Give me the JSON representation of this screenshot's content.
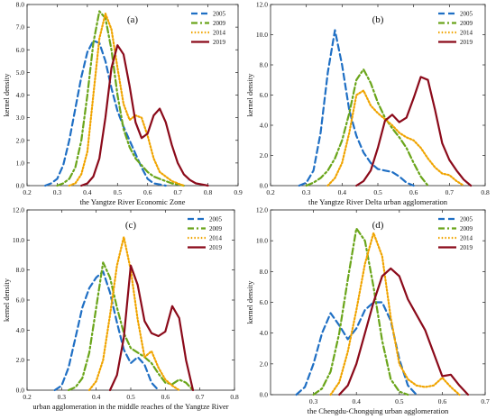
{
  "chart_data": [
    {
      "type": "line",
      "panel_tag": "(a)",
      "xlabel": "the Yangtze River Economic Zone",
      "ylabel": "kernel density",
      "xlim": [
        0.2,
        0.9
      ],
      "ylim": [
        0,
        8
      ],
      "xticks": [
        "0.2",
        "0.3",
        "0.4",
        "0.5",
        "0.6",
        "0.7",
        "0.8",
        "0.9"
      ],
      "yticks": [
        "0.0",
        "1.0",
        "2.0",
        "3.0",
        "4.0",
        "5.0",
        "6.0",
        "7.0",
        "8.0"
      ],
      "legend": "top-right",
      "grid": false,
      "series": [
        {
          "name": "2005",
          "color": "#1f6fc4",
          "style": "dashed",
          "x": [
            0.26,
            0.28,
            0.3,
            0.32,
            0.34,
            0.36,
            0.38,
            0.4,
            0.42,
            0.44,
            0.46,
            0.48,
            0.5,
            0.52,
            0.54,
            0.56,
            0.58,
            0.6,
            0.62,
            0.64,
            0.66
          ],
          "y": [
            0.0,
            0.1,
            0.3,
            0.9,
            2.0,
            3.4,
            4.8,
            5.9,
            6.4,
            6.3,
            5.5,
            4.3,
            3.3,
            2.6,
            2.0,
            1.4,
            0.8,
            0.3,
            0.1,
            0.05,
            0.0
          ]
        },
        {
          "name": "2009",
          "color": "#6aa51a",
          "style": "dashdot",
          "x": [
            0.3,
            0.32,
            0.34,
            0.36,
            0.38,
            0.4,
            0.42,
            0.44,
            0.46,
            0.48,
            0.5,
            0.52,
            0.54,
            0.56,
            0.58,
            0.6,
            0.62,
            0.64,
            0.66,
            0.68,
            0.7,
            0.72
          ],
          "y": [
            0.0,
            0.1,
            0.3,
            0.8,
            2.0,
            4.0,
            6.3,
            7.7,
            7.4,
            6.0,
            4.0,
            2.5,
            1.7,
            1.2,
            0.9,
            0.6,
            0.4,
            0.3,
            0.2,
            0.1,
            0.05,
            0.0
          ]
        },
        {
          "name": "2014",
          "color": "#f0a400",
          "style": "dotted",
          "x": [
            0.34,
            0.36,
            0.38,
            0.4,
            0.42,
            0.44,
            0.46,
            0.48,
            0.5,
            0.52,
            0.54,
            0.56,
            0.58,
            0.6,
            0.62,
            0.64,
            0.66,
            0.68,
            0.7,
            0.72
          ],
          "y": [
            0.0,
            0.1,
            0.5,
            1.5,
            4.0,
            6.5,
            7.6,
            6.9,
            5.2,
            3.6,
            2.9,
            3.1,
            3.0,
            2.2,
            1.2,
            0.6,
            0.4,
            0.2,
            0.1,
            0.0
          ]
        },
        {
          "name": "2019",
          "color": "#8b0a1a",
          "style": "solid",
          "x": [
            0.38,
            0.4,
            0.42,
            0.44,
            0.46,
            0.48,
            0.5,
            0.52,
            0.54,
            0.56,
            0.58,
            0.6,
            0.62,
            0.64,
            0.66,
            0.68,
            0.7,
            0.72,
            0.74,
            0.76,
            0.78,
            0.8
          ],
          "y": [
            0.0,
            0.1,
            0.4,
            1.2,
            3.0,
            5.2,
            6.2,
            5.8,
            4.4,
            2.8,
            2.1,
            2.3,
            3.1,
            3.4,
            2.8,
            1.8,
            1.0,
            0.5,
            0.25,
            0.1,
            0.05,
            0.0
          ]
        }
      ]
    },
    {
      "type": "line",
      "panel_tag": "(b)",
      "xlabel": "the Yangtze River Delta urban agglomeration",
      "ylabel": "kernel density",
      "xlim": [
        0.2,
        0.8
      ],
      "ylim": [
        0,
        12
      ],
      "xticks": [
        "0.2",
        "0.3",
        "0.4",
        "0.5",
        "0.6",
        "0.7",
        "0.8"
      ],
      "yticks": [
        "0.0",
        "2.0",
        "4.0",
        "6.0",
        "8.0",
        "10.0",
        "12.0"
      ],
      "legend": "top-right",
      "grid": false,
      "series": [
        {
          "name": "2005",
          "color": "#1f6fc4",
          "style": "dashed",
          "x": [
            0.28,
            0.3,
            0.32,
            0.34,
            0.36,
            0.38,
            0.4,
            0.42,
            0.44,
            0.46,
            0.48,
            0.5,
            0.52,
            0.54,
            0.56,
            0.58,
            0.6
          ],
          "y": [
            0.0,
            0.2,
            1.0,
            3.5,
            7.5,
            10.3,
            8.0,
            5.0,
            3.3,
            2.2,
            1.5,
            1.1,
            1.0,
            0.9,
            0.6,
            0.2,
            0.0
          ]
        },
        {
          "name": "2009",
          "color": "#6aa51a",
          "style": "dashdot",
          "x": [
            0.3,
            0.32,
            0.34,
            0.36,
            0.38,
            0.4,
            0.42,
            0.44,
            0.46,
            0.48,
            0.5,
            0.52,
            0.54,
            0.56,
            0.58,
            0.6,
            0.62,
            0.64
          ],
          "y": [
            0.0,
            0.2,
            0.5,
            1.0,
            1.8,
            3.0,
            4.8,
            7.0,
            7.7,
            6.8,
            5.5,
            4.5,
            3.8,
            3.2,
            2.5,
            1.5,
            0.6,
            0.0
          ]
        },
        {
          "name": "2014",
          "color": "#f0a400",
          "style": "dotted",
          "x": [
            0.36,
            0.38,
            0.4,
            0.42,
            0.44,
            0.46,
            0.48,
            0.5,
            0.52,
            0.54,
            0.56,
            0.58,
            0.6,
            0.62,
            0.64,
            0.66,
            0.68,
            0.7,
            0.72,
            0.74
          ],
          "y": [
            0.0,
            0.5,
            1.5,
            3.5,
            6.0,
            6.3,
            5.3,
            4.8,
            4.4,
            4.0,
            3.5,
            3.2,
            3.0,
            2.5,
            1.8,
            1.2,
            0.8,
            0.7,
            0.3,
            0.0
          ]
        },
        {
          "name": "2019",
          "color": "#8b0a1a",
          "style": "solid",
          "x": [
            0.44,
            0.46,
            0.48,
            0.5,
            0.52,
            0.54,
            0.56,
            0.58,
            0.6,
            0.62,
            0.64,
            0.66,
            0.68,
            0.7,
            0.72,
            0.74,
            0.76
          ],
          "y": [
            0.0,
            0.3,
            1.0,
            2.5,
            4.3,
            4.7,
            4.2,
            4.5,
            5.8,
            7.2,
            7.0,
            5.0,
            2.8,
            1.7,
            1.0,
            0.4,
            0.0
          ]
        }
      ]
    },
    {
      "type": "line",
      "panel_tag": "(c)",
      "xlabel": "urban agglomeration in the middle reaches of the Yangtze River",
      "ylabel": "kernel density",
      "xlim": [
        0.2,
        0.8
      ],
      "ylim": [
        0,
        12
      ],
      "xticks": [
        "0.2",
        "0.3",
        "0.4",
        "0.5",
        "0.6",
        "0.7",
        "0.8"
      ],
      "yticks": [
        "0.0",
        "2.0",
        "4.0",
        "6.0",
        "8.0",
        "10.0",
        "12.0"
      ],
      "legend": "top-right",
      "grid": false,
      "series": [
        {
          "name": "2005",
          "color": "#1f6fc4",
          "style": "dashed",
          "x": [
            0.28,
            0.3,
            0.32,
            0.34,
            0.36,
            0.38,
            0.4,
            0.42,
            0.44,
            0.46,
            0.48,
            0.5,
            0.52,
            0.54,
            0.56,
            0.58
          ],
          "y": [
            0.0,
            0.3,
            1.5,
            3.5,
            5.5,
            6.8,
            7.5,
            7.9,
            6.5,
            4.5,
            2.7,
            1.8,
            2.2,
            1.7,
            0.5,
            0.0
          ]
        },
        {
          "name": "2009",
          "color": "#6aa51a",
          "style": "dashdot",
          "x": [
            0.32,
            0.34,
            0.36,
            0.38,
            0.4,
            0.42,
            0.44,
            0.46,
            0.48,
            0.5,
            0.52,
            0.54,
            0.56,
            0.58,
            0.6,
            0.62,
            0.64,
            0.66,
            0.68
          ],
          "y": [
            0.0,
            0.2,
            0.8,
            2.5,
            5.5,
            8.5,
            7.5,
            5.5,
            3.8,
            2.8,
            2.5,
            2.2,
            1.8,
            1.1,
            0.5,
            0.4,
            0.7,
            0.5,
            0.0
          ]
        },
        {
          "name": "2014",
          "color": "#f0a400",
          "style": "dotted",
          "x": [
            0.38,
            0.4,
            0.42,
            0.44,
            0.46,
            0.48,
            0.5,
            0.52,
            0.54,
            0.56,
            0.58,
            0.6,
            0.62,
            0.64
          ],
          "y": [
            0.0,
            0.6,
            2.0,
            5.0,
            8.3,
            10.2,
            8.0,
            4.7,
            2.2,
            2.6,
            1.5,
            0.7,
            0.3,
            0.0
          ]
        },
        {
          "name": "2019",
          "color": "#8b0a1a",
          "style": "solid",
          "x": [
            0.44,
            0.46,
            0.48,
            0.5,
            0.52,
            0.54,
            0.56,
            0.58,
            0.6,
            0.62,
            0.64,
            0.66,
            0.68
          ],
          "y": [
            0.0,
            1.0,
            3.5,
            8.3,
            7.0,
            4.6,
            3.8,
            3.6,
            3.9,
            5.6,
            4.8,
            2.0,
            0.0
          ]
        }
      ]
    },
    {
      "type": "line",
      "panel_tag": "(d)",
      "xlabel": "the Chengdu-Chongqing urban agglomeration",
      "ylabel": "kernel density",
      "xlim": [
        0.2,
        0.7
      ],
      "ylim": [
        0,
        12
      ],
      "xticks": [
        "0.3",
        "0.4",
        "0.5",
        "0.6",
        "0.7"
      ],
      "yticks": [
        "0.0",
        "2.0",
        "4.0",
        "6.0",
        "8.0",
        "10.0",
        "12.0"
      ],
      "legend": "top-right",
      "grid": false,
      "series": [
        {
          "name": "2005",
          "color": "#1f6fc4",
          "style": "dashed",
          "x": [
            0.26,
            0.28,
            0.3,
            0.32,
            0.34,
            0.36,
            0.38,
            0.4,
            0.42,
            0.44,
            0.46,
            0.48,
            0.5,
            0.52,
            0.54
          ],
          "y": [
            0.0,
            0.5,
            2.0,
            4.0,
            5.3,
            4.5,
            3.6,
            4.3,
            5.5,
            6.0,
            6.0,
            4.8,
            2.3,
            0.6,
            0.0
          ]
        },
        {
          "name": "2009",
          "color": "#6aa51a",
          "style": "dashdot",
          "x": [
            0.3,
            0.32,
            0.34,
            0.36,
            0.38,
            0.4,
            0.42,
            0.44,
            0.46,
            0.48,
            0.5,
            0.52
          ],
          "y": [
            0.0,
            0.4,
            1.5,
            4.0,
            7.5,
            10.8,
            10.0,
            7.0,
            3.5,
            1.0,
            0.2,
            0.0
          ]
        },
        {
          "name": "2014",
          "color": "#f0a400",
          "style": "dotted",
          "x": [
            0.34,
            0.36,
            0.38,
            0.4,
            0.42,
            0.44,
            0.46,
            0.48,
            0.5,
            0.52,
            0.54,
            0.56,
            0.58,
            0.6,
            0.62,
            0.64
          ],
          "y": [
            0.0,
            0.8,
            2.8,
            5.5,
            8.5,
            10.5,
            9.0,
            5.0,
            2.0,
            1.0,
            0.6,
            0.5,
            0.6,
            1.1,
            0.5,
            0.0
          ]
        },
        {
          "name": "2019",
          "color": "#8b0a1a",
          "style": "solid",
          "x": [
            0.36,
            0.38,
            0.4,
            0.42,
            0.44,
            0.46,
            0.48,
            0.5,
            0.52,
            0.54,
            0.56,
            0.58,
            0.6,
            0.62,
            0.64,
            0.66
          ],
          "y": [
            0.0,
            0.6,
            2.0,
            4.0,
            6.0,
            7.7,
            8.2,
            7.7,
            6.2,
            5.2,
            4.2,
            2.7,
            1.2,
            1.3,
            0.6,
            0.0
          ]
        }
      ]
    }
  ]
}
